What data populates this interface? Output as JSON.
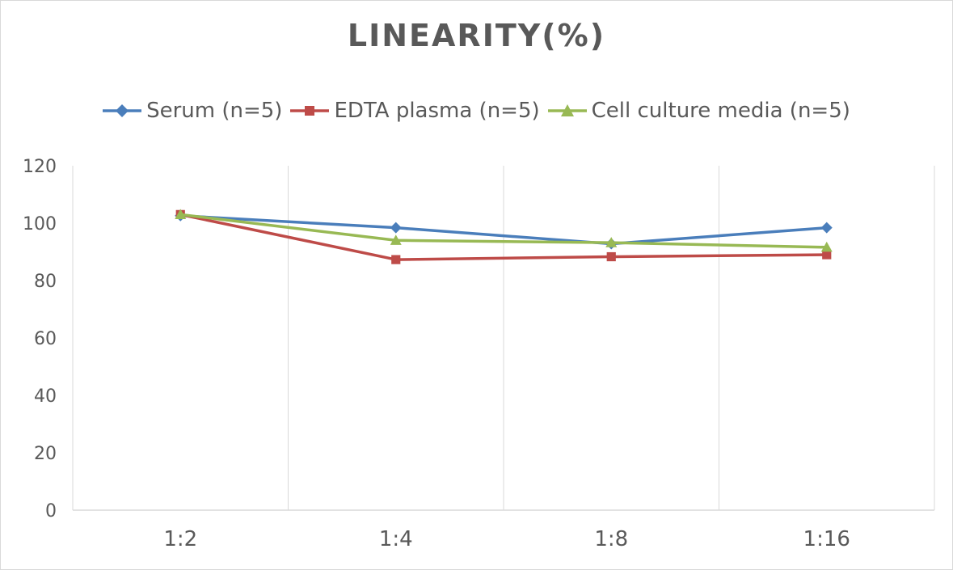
{
  "chart_data": {
    "type": "line",
    "title": "LINEARITY(%)",
    "categories": [
      "1:2",
      "1:4",
      "1:8",
      "1:16"
    ],
    "series": [
      {
        "name": "Serum (n=5)",
        "values": [
          102.6,
          98.4,
          92.8,
          98.4
        ],
        "color": "#4a7ebb",
        "marker": "diamond"
      },
      {
        "name": "EDTA plasma (n=5)",
        "values": [
          103,
          87.3,
          88.3,
          89
        ],
        "color": "#be4b48",
        "marker": "square"
      },
      {
        "name": "Cell culture media (n=5)",
        "values": [
          103,
          94,
          93.2,
          91.6
        ],
        "color": "#98b954",
        "marker": "triangle"
      }
    ],
    "ylim": [
      0,
      120
    ],
    "yticks": [
      "0",
      "20",
      "40",
      "60",
      "80",
      "100",
      "120"
    ],
    "grid": "vertical",
    "legend": "top"
  }
}
